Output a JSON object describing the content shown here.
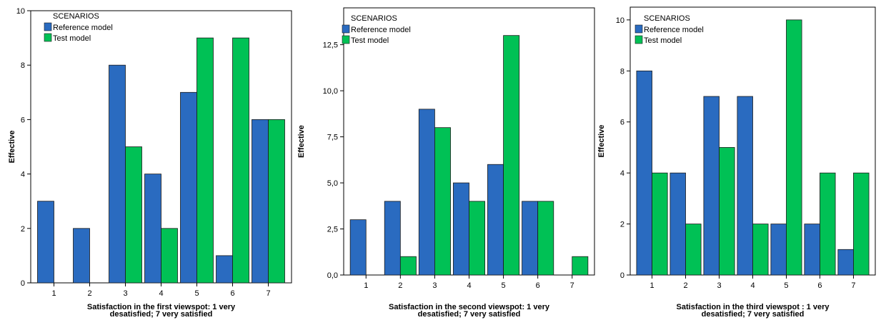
{
  "colors": {
    "reference": "#2a6bc0",
    "test": "#00c155",
    "frame": "#000000",
    "background": "#ffffff"
  },
  "chart_data": [
    {
      "type": "bar",
      "legend_title": "SCENARIOS",
      "legend_position": "top-left",
      "xlabel": "Satisfaction in the first viewspot: 1 very desatisfied; 7 very satisfied",
      "xlabel_lines": [
        "Satisfaction in the first viewspot: 1 very",
        "desatisfied; 7 very satisfied"
      ],
      "ylabel": "Effective",
      "categories": [
        "1",
        "2",
        "3",
        "4",
        "5",
        "6",
        "7"
      ],
      "ylim": [
        0,
        10
      ],
      "yticks": [
        0,
        2,
        4,
        6,
        8,
        10
      ],
      "ytick_labels": [
        "0",
        "2",
        "4",
        "6",
        "8",
        "10"
      ],
      "grid": false,
      "series": [
        {
          "name": "Reference model",
          "values": [
            3,
            2,
            8,
            4,
            7,
            1,
            6
          ]
        },
        {
          "name": "Test model",
          "values": [
            0,
            0,
            5,
            2,
            9,
            9,
            6
          ]
        }
      ]
    },
    {
      "type": "bar",
      "legend_title": "SCENARIOS",
      "legend_position": "top-left",
      "xlabel": "Satisfaction in the second viewspot: 1 very desatisfied; 7 very satisfied",
      "xlabel_lines": [
        "Satisfaction in the second viewspot: 1 very",
        "desatisfied; 7 very satisfied"
      ],
      "ylabel": "Effective",
      "categories": [
        "1",
        "2",
        "3",
        "4",
        "5",
        "6",
        "7"
      ],
      "ylim": [
        0,
        14.5
      ],
      "yticks": [
        0,
        2.5,
        5,
        7.5,
        10,
        12.5
      ],
      "ytick_labels": [
        "0,0",
        "2,5",
        "5,0",
        "7,5",
        "10,0",
        "12,5"
      ],
      "grid": false,
      "series": [
        {
          "name": "Reference model",
          "values": [
            3,
            4,
            9,
            5,
            6,
            4,
            0
          ]
        },
        {
          "name": "Test model",
          "values": [
            0,
            1,
            8,
            4,
            13,
            4,
            1
          ]
        }
      ]
    },
    {
      "type": "bar",
      "legend_title": "SCENARIOS",
      "legend_position": "top-left",
      "xlabel": "Satisfaction in the third viewspot : 1 very desatisfied; 7 very satisfied",
      "xlabel_lines": [
        "Satisfaction in the third viewspot : 1 very",
        "desatisfied; 7 very satisfied"
      ],
      "ylabel": "Effective",
      "categories": [
        "1",
        "2",
        "3",
        "4",
        "5",
        "6",
        "7"
      ],
      "ylim": [
        0,
        10.5
      ],
      "yticks": [
        0,
        2,
        4,
        6,
        8,
        10
      ],
      "ytick_labels": [
        "0",
        "2",
        "4",
        "6",
        "8",
        "10"
      ],
      "grid": false,
      "series": [
        {
          "name": "Reference model",
          "values": [
            8,
            4,
            7,
            7,
            2,
            2,
            1
          ]
        },
        {
          "name": "Test model",
          "values": [
            4,
            2,
            5,
            2,
            10,
            4,
            4
          ]
        }
      ]
    }
  ]
}
